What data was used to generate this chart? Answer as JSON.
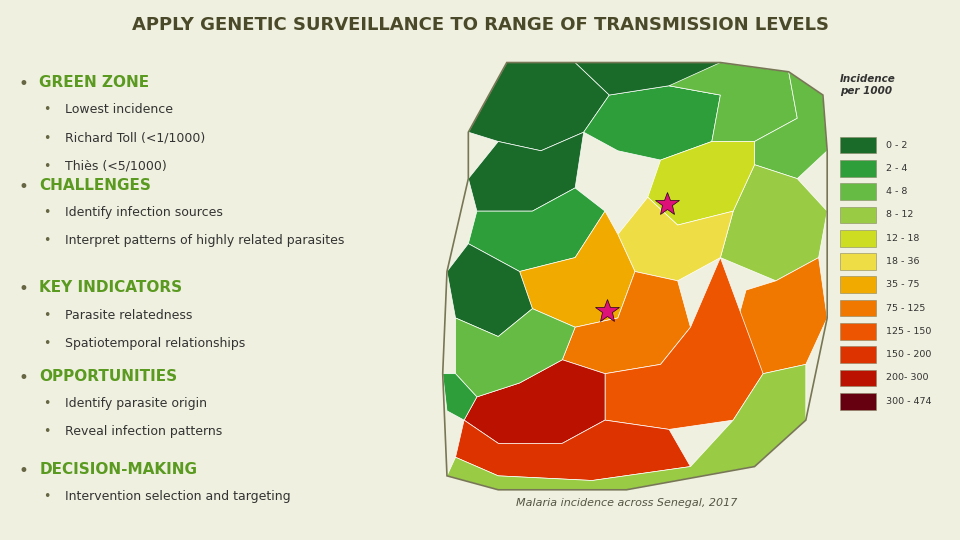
{
  "title": "APPLY GENETIC SURVEILLANCE TO RANGE OF TRANSMISSION LEVELS",
  "title_fontsize": 13,
  "title_color": "#4a4a2a",
  "bg_color": "#f0f0e0",
  "title_bg": "#d8d8c0",
  "text_color": "#333333",
  "sections": [
    {
      "header": "GREEN ZONE",
      "header_color": "#5a9a20",
      "sub_bullets": [
        "Lowest incidence",
        "Richard Toll (<1/1000)",
        "Thiès (<5/1000)"
      ]
    },
    {
      "header": "CHALLENGES",
      "header_color": "#5a9a20",
      "sub_bullets": [
        "Identify infection sources",
        "Interpret patterns of highly related parasites"
      ]
    },
    {
      "header": "KEY INDICATORS",
      "header_color": "#5a9a20",
      "sub_bullets": [
        "Parasite relatedness",
        "Spatiotemporal relationships"
      ]
    },
    {
      "header": "OPPORTUNITIES",
      "header_color": "#5a9a20",
      "sub_bullets": [
        "Identify parasite origin",
        "Reveal infection patterns"
      ]
    },
    {
      "header": "DECISION-MAKING",
      "header_color": "#5a9a20",
      "sub_bullets": [
        "Intervention selection and targeting"
      ]
    }
  ],
  "legend_title": "Incidence\nper 1000",
  "legend_items": [
    {
      "label": "0 - 2",
      "color": "#1a6b2a"
    },
    {
      "label": "2 - 4",
      "color": "#2d9e3a"
    },
    {
      "label": "4 - 8",
      "color": "#66bb44"
    },
    {
      "label": "8 - 12",
      "color": "#99cc44"
    },
    {
      "label": "12 - 18",
      "color": "#ccdd22"
    },
    {
      "label": "18 - 36",
      "color": "#eedd44"
    },
    {
      "label": "35 - 75",
      "color": "#f0aa00"
    },
    {
      "label": "75 - 125",
      "color": "#f07700"
    },
    {
      "label": "125 - 150",
      "color": "#ee5500"
    },
    {
      "label": "150 - 200",
      "color": "#dd3300"
    },
    {
      "label": "200- 300",
      "color": "#bb1100"
    },
    {
      "label": "300 - 474",
      "color": "#660011"
    }
  ],
  "map_caption": "Malaria incidence across Senegal, 2017",
  "star1": [
    0.595,
    0.665
  ],
  "star2": [
    0.455,
    0.435
  ]
}
